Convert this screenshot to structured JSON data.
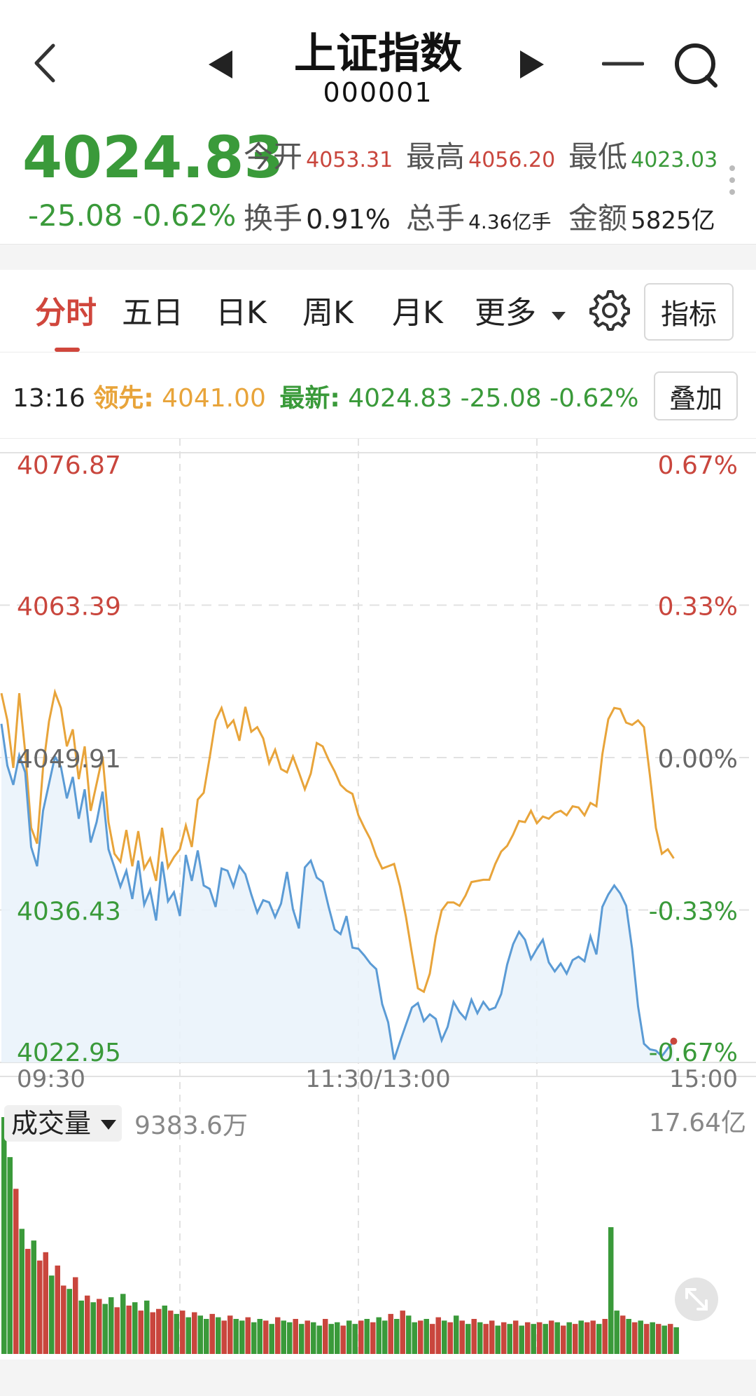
{
  "header": {
    "title": "上证指数",
    "code": "000001",
    "back_icon": "chevron-left-icon",
    "prev_icon": "triangle-left-icon",
    "next_icon": "triangle-right-icon",
    "minus_icon": "minus-icon",
    "search_icon": "search-icon"
  },
  "quote": {
    "price": "4024.83",
    "change": "-25.08",
    "change_pct": "-0.62%",
    "stats": [
      {
        "label": "今开",
        "value": "4053.31",
        "color": "#c9463d"
      },
      {
        "label": "最高",
        "value": "4056.20",
        "color": "#c9463d"
      },
      {
        "label": "最低",
        "value": "4023.03",
        "color": "#3a9a3a"
      },
      {
        "label": "换手",
        "value": "0.91%",
        "color": "#222222"
      },
      {
        "label": "总手",
        "value": "4.36亿手",
        "color": "#222222"
      },
      {
        "label": "金额",
        "value": "5825亿",
        "color": "#222222"
      }
    ]
  },
  "tabs": {
    "items": [
      "分时",
      "五日",
      "日K",
      "周K",
      "月K",
      "更多"
    ],
    "active": 0,
    "indicator_label": "指标"
  },
  "infobar": {
    "time": "13:16",
    "lead_label": "领先:",
    "lead_value": "4041.00",
    "latest_label": "最新:",
    "latest_value": "4024.83",
    "latest_change": "-25.08",
    "latest_pct": "-0.62%",
    "overlay_label": "叠加"
  },
  "colors": {
    "up": "#c9463d",
    "down": "#3a9a3a",
    "lead_line": "#e8a43a",
    "price_line": "#5b9bd5"
  },
  "chart_data": {
    "type": "line",
    "y_left_ticks": [
      "4076.87",
      "4063.39",
      "4049.91",
      "4036.43",
      "4022.95"
    ],
    "y_right_ticks": [
      "0.67%",
      "0.33%",
      "0.00%",
      "-0.33%",
      "-0.67%"
    ],
    "x_ticks": [
      "09:30",
      "11:30/13:00",
      "15:00"
    ],
    "ylim": [
      4022.95,
      4076.87
    ],
    "x_range_minutes": [
      0,
      240
    ],
    "series": [
      {
        "name": "最新",
        "color": "#5b9bd5",
        "x": [
          0,
          2,
          4,
          6,
          8,
          10,
          12,
          14,
          16,
          18,
          20,
          22,
          24,
          26,
          28,
          30,
          32,
          34,
          36,
          38,
          40,
          42,
          44,
          46,
          48,
          50,
          52,
          54,
          56,
          58,
          60,
          62,
          64,
          66,
          68,
          70,
          72,
          74,
          76,
          78,
          80,
          82,
          84,
          86,
          88,
          90,
          92,
          94,
          96,
          98,
          100,
          102,
          104,
          106,
          108,
          110,
          112,
          114,
          116,
          118,
          120,
          122,
          124,
          126,
          128,
          130,
          132,
          134,
          136,
          138,
          140,
          142,
          144,
          146,
          148,
          150,
          152,
          154,
          156,
          158,
          160,
          162,
          164,
          166,
          168,
          170,
          172,
          174,
          176,
          178,
          180,
          182,
          184,
          186,
          188,
          190,
          192,
          194,
          196,
          198,
          200,
          202,
          204,
          206,
          208,
          210,
          212,
          214,
          216,
          218,
          220,
          222,
          224,
          226
        ],
        "values": [
          4052.9,
          4049.2,
          4047.5,
          4050.1,
          4048.6,
          4042.0,
          4040.3,
          4045.2,
          4047.6,
          4050.0,
          4049.1,
          4046.3,
          4048.2,
          4044.5,
          4047.1,
          4042.4,
          4044.2,
          4046.9,
          4041.8,
          4040.2,
          4038.5,
          4039.9,
          4037.4,
          4040.8,
          4036.9,
          4038.2,
          4035.5,
          4040.7,
          4037.2,
          4038.0,
          4035.9,
          4041.3,
          4039.0,
          4041.7,
          4038.6,
          4038.3,
          4036.7,
          4040.1,
          4039.9,
          4038.5,
          4040.3,
          4039.6,
          4037.8,
          4036.2,
          4037.3,
          4037.1,
          4035.8,
          4037.0,
          4039.8,
          4036.5,
          4034.8,
          4040.2,
          4040.8,
          4039.3,
          4038.9,
          4036.7,
          4034.7,
          4034.3,
          4035.9,
          4033.1,
          4033.0,
          4032.4,
          4031.7,
          4031.2,
          4028.1,
          4026.5,
          4023.2,
          4024.8,
          4026.3,
          4027.8,
          4028.2,
          4026.6,
          4027.2,
          4026.8,
          4024.9,
          4026.1,
          4028.3,
          4027.4,
          4026.8,
          4028.5,
          4027.3,
          4028.3,
          4027.6,
          4027.8,
          4029.0,
          4031.6,
          4033.4,
          4034.5,
          4033.8,
          4032.1,
          4033.0,
          4033.8,
          4031.8,
          4031.0,
          4031.7,
          4030.8,
          4032.0,
          4032.3,
          4031.9,
          4034.1,
          4032.5,
          4036.7,
          4037.8,
          4038.6,
          4037.9,
          4036.8,
          4033.0,
          4027.9,
          4024.6,
          4024.1,
          4024.0,
          4023.5,
          4024.2,
          4024.83
        ]
      },
      {
        "name": "领先",
        "color": "#e8a43a",
        "x": [
          0,
          2,
          4,
          6,
          8,
          10,
          12,
          14,
          16,
          18,
          20,
          22,
          24,
          26,
          28,
          30,
          32,
          34,
          36,
          38,
          40,
          42,
          44,
          46,
          48,
          50,
          52,
          54,
          56,
          58,
          60,
          62,
          64,
          66,
          68,
          70,
          72,
          74,
          76,
          78,
          80,
          82,
          84,
          86,
          88,
          90,
          92,
          94,
          96,
          98,
          100,
          102,
          104,
          106,
          108,
          110,
          112,
          114,
          116,
          118,
          120,
          122,
          124,
          126,
          128,
          130,
          132,
          134,
          136,
          138,
          140,
          142,
          144,
          146,
          148,
          150,
          152,
          154,
          156,
          158,
          160,
          162,
          164,
          166,
          168,
          170,
          172,
          174,
          176,
          178,
          180,
          182,
          184,
          186,
          188,
          190,
          192,
          194,
          196,
          198,
          200,
          202,
          204,
          206,
          208,
          210,
          212,
          214,
          216,
          218,
          220,
          222,
          224,
          226
        ],
        "values": [
          4055.6,
          4053.2,
          4049.0,
          4055.6,
          4050.4,
          4043.7,
          4042.3,
          4049.0,
          4053.1,
          4055.7,
          4054.3,
          4050.9,
          4052.4,
          4048.0,
          4050.9,
          4045.2,
          4047.6,
          4050.0,
          4044.2,
          4041.4,
          4040.7,
          4043.5,
          4040.3,
          4043.4,
          4040.1,
          4041.0,
          4039.0,
          4043.7,
          4040.2,
          4041.1,
          4041.8,
          4043.9,
          4042.0,
          4046.2,
          4046.8,
          4049.9,
          4053.2,
          4054.3,
          4052.6,
          4053.2,
          4051.4,
          4054.4,
          4052.2,
          4052.6,
          4051.6,
          4049.4,
          4050.6,
          4048.9,
          4048.6,
          4050.0,
          4048.6,
          4047.1,
          4048.5,
          4051.2,
          4050.9,
          4049.7,
          4048.7,
          4047.5,
          4047.0,
          4046.7,
          4044.8,
          4043.7,
          4042.7,
          4041.2,
          4040.1,
          4040.3,
          4040.5,
          4038.5,
          4035.8,
          4032.6,
          4029.5,
          4029.2,
          4030.8,
          4034.1,
          4036.4,
          4037.1,
          4037.1,
          4036.8,
          4037.7,
          4038.9,
          4039.0,
          4039.1,
          4039.1,
          4040.5,
          4041.6,
          4042.1,
          4043.1,
          4044.3,
          4044.2,
          4045.2,
          4044.1,
          4044.7,
          4044.5,
          4045.0,
          4045.2,
          4044.8,
          4045.6,
          4045.5,
          4044.8,
          4045.9,
          4045.6,
          4050.2,
          4053.3,
          4054.3,
          4054.2,
          4053.0,
          4052.8,
          4053.2,
          4052.6,
          4048.3,
          4043.7,
          4041.4,
          4041.8,
          4041.0
        ]
      }
    ],
    "last_point": {
      "x": 226,
      "value": 4024.83,
      "color": "#c9463d"
    },
    "volume": {
      "label": "成交量",
      "current": "9383.6万",
      "max_label": "17.64亿",
      "x_step_minutes": 2,
      "values": [
        14.2,
        11.8,
        9.9,
        7.5,
        6.3,
        6.8,
        5.6,
        6.1,
        4.7,
        5.3,
        4.1,
        3.9,
        4.6,
        3.2,
        3.5,
        3.1,
        3.3,
        3.0,
        3.4,
        2.8,
        3.6,
        2.9,
        3.1,
        2.6,
        3.2,
        2.5,
        2.7,
        2.9,
        2.6,
        2.4,
        2.6,
        2.2,
        2.5,
        2.3,
        2.1,
        2.4,
        2.2,
        2.0,
        2.3,
        2.1,
        2.0,
        2.2,
        1.9,
        2.1,
        2.0,
        1.8,
        2.2,
        2.0,
        1.9,
        2.1,
        1.8,
        2.0,
        1.9,
        1.7,
        2.1,
        1.8,
        1.9,
        1.7,
        2.0,
        1.8,
        2.0,
        2.1,
        1.9,
        2.2,
        2.0,
        2.4,
        2.1,
        2.6,
        2.3,
        1.9,
        2.0,
        2.1,
        1.8,
        2.2,
        2.0,
        1.9,
        2.3,
        2.0,
        1.8,
        2.1,
        1.9,
        1.8,
        2.0,
        1.7,
        1.9,
        1.8,
        2.0,
        1.7,
        1.9,
        1.8,
        1.9,
        1.8,
        2.0,
        1.9,
        1.7,
        1.9,
        1.8,
        2.0,
        1.9,
        2.0,
        1.8,
        2.1,
        7.6,
        2.6,
        2.3,
        2.1,
        1.9,
        2.0,
        1.8,
        1.9,
        1.8,
        1.7,
        1.8,
        1.6
      ],
      "colors_up": [
        0,
        0,
        1,
        0,
        1,
        0,
        1,
        1,
        0,
        1,
        1,
        0,
        1,
        0,
        1,
        0,
        1,
        0,
        0,
        1,
        0,
        1,
        0,
        1,
        0,
        1,
        1,
        0,
        1,
        0,
        1,
        0,
        1,
        0,
        0,
        1,
        0,
        1,
        1,
        0,
        0,
        1,
        0,
        0,
        1,
        0,
        1,
        0,
        0,
        1,
        0,
        1,
        0,
        0,
        1,
        0,
        0,
        1,
        0,
        0,
        1,
        0,
        1,
        0,
        0,
        1,
        0,
        1,
        0,
        0,
        1,
        0,
        1,
        1,
        0,
        1,
        0,
        1,
        0,
        1,
        0,
        1,
        1,
        0,
        1,
        0,
        1,
        0,
        1,
        0,
        1,
        0,
        1,
        0,
        1,
        0,
        1,
        0,
        1,
        1,
        0,
        1,
        0,
        0,
        1,
        0,
        1,
        0,
        1,
        0,
        1,
        0,
        1,
        0
      ]
    }
  }
}
